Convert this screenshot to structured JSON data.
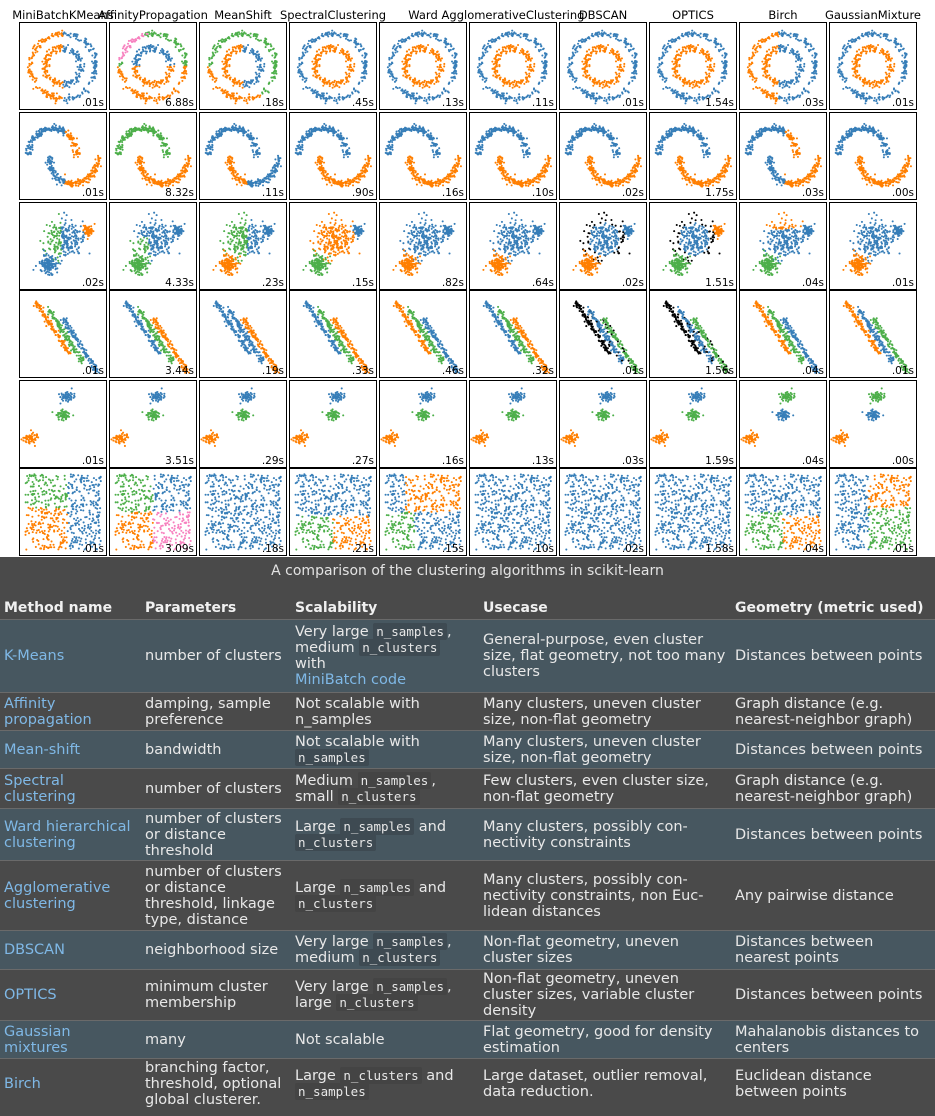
{
  "figure": {
    "algorithms": [
      "MiniBatchKMeans",
      "AffinityPropagation",
      "MeanShift",
      "SpectralClustering",
      "Ward",
      "AgglomerativeClustering",
      "DBSCAN",
      "OPTICS",
      "Birch",
      "GaussianMixture"
    ],
    "times": [
      [
        ".01s",
        "6.88s",
        ".18s",
        ".45s",
        ".13s",
        ".11s",
        ".01s",
        "1.54s",
        ".03s",
        ".01s"
      ],
      [
        ".01s",
        "8.32s",
        ".11s",
        ".90s",
        ".16s",
        ".10s",
        ".02s",
        "1.75s",
        ".03s",
        ".00s"
      ],
      [
        ".02s",
        "4.33s",
        ".23s",
        ".15s",
        ".82s",
        ".64s",
        ".02s",
        "1.51s",
        ".04s",
        ".01s"
      ],
      [
        ".01s",
        "3.44s",
        ".19s",
        ".33s",
        ".46s",
        ".32s",
        ".01s",
        "1.56s",
        ".04s",
        ".01s"
      ],
      [
        ".01s",
        "3.51s",
        ".29s",
        ".27s",
        ".16s",
        ".13s",
        ".03s",
        "1.59s",
        ".04s",
        ".00s"
      ],
      [
        ".01s",
        "3.09s",
        ".18s",
        ".21s",
        ".15s",
        ".10s",
        ".02s",
        "1.58s",
        ".04s",
        ".01s"
      ]
    ],
    "colors": {
      "blue": "#377eb8",
      "orange": "#ff7f00",
      "green": "#4daf4a",
      "pink": "#f781bf",
      "noise": "#000000"
    }
  },
  "caption": "A comparison of the clustering algorithms in scikit-learn",
  "table": {
    "headers": [
      "Method name",
      "Parameters",
      "Scalability",
      "Usecase",
      "Geometry (metric used)"
    ],
    "rows": [
      {
        "method": "K-Means",
        "params": "number of clusters",
        "scal": [
          {
            "t": "Very large "
          },
          {
            "c": "n_samples"
          },
          {
            "t": ","
          },
          {
            "br": 1
          },
          {
            "t": "medium "
          },
          {
            "c": "n_clusters"
          },
          {
            "br": 1
          },
          {
            "t": "with"
          },
          {
            "br": 1
          },
          {
            "l": "MiniBatch code"
          }
        ],
        "usecase": "General-purpose, even cluster size, flat geometry, not too many clusters",
        "geom": "Distances between points"
      },
      {
        "method": "Affinity propagation",
        "params": "damping, sample preference",
        "scal": [
          {
            "t": "Not scalable with"
          },
          {
            "br": 1
          },
          {
            "t": "n_samples"
          }
        ],
        "usecase": "Many clusters, uneven cluster size, non-flat geometry",
        "geom": "Graph distance (e.g. nearest-neighbor graph)"
      },
      {
        "method": "Mean-shift",
        "params": "bandwidth",
        "scal": [
          {
            "t": "Not scalable with"
          },
          {
            "br": 1
          },
          {
            "c": "n_samples"
          }
        ],
        "usecase": "Many clusters, uneven cluster size, non-flat geometry",
        "geom": "Distances between points"
      },
      {
        "method": "Spectral clustering",
        "params": "number of clusters",
        "scal": [
          {
            "t": "Medium "
          },
          {
            "c": "n_samples"
          },
          {
            "t": ","
          },
          {
            "br": 1
          },
          {
            "t": "small "
          },
          {
            "c": "n_clusters"
          }
        ],
        "usecase": "Few clusters, even cluster size, non-flat geometry",
        "geom": "Graph distance (e.g. nearest-neighbor graph)"
      },
      {
        "method": "Ward hierarchical clustering",
        "params": "number of clusters or distance threshold",
        "scal": [
          {
            "t": "Large "
          },
          {
            "c": "n_samples"
          },
          {
            "t": " and"
          },
          {
            "br": 1
          },
          {
            "c": "n_clusters"
          }
        ],
        "usecase": "Many clusters, possibly con- nectivity constraints",
        "geom": "Distances between points"
      },
      {
        "method": "Agglomerative clustering",
        "params": "number of clusters or distance threshold, linkage type, distance",
        "scal": [
          {
            "t": "Large "
          },
          {
            "c": "n_samples"
          },
          {
            "t": " and"
          },
          {
            "br": 1
          },
          {
            "c": "n_clusters"
          }
        ],
        "usecase": "Many clusters, possibly con- nectivity constraints, non Euc- lidean distances",
        "geom": "Any pairwise distance"
      },
      {
        "method": "DBSCAN",
        "params": "neighborhood size",
        "scal": [
          {
            "t": "Very large "
          },
          {
            "c": "n_samples"
          },
          {
            "t": ","
          },
          {
            "br": 1
          },
          {
            "t": "medium "
          },
          {
            "c": "n_clusters"
          }
        ],
        "usecase": "Non-flat geometry, uneven cluster sizes",
        "geom": "Distances between nearest points"
      },
      {
        "method": "OPTICS",
        "params": "minimum cluster membership",
        "scal": [
          {
            "t": "Very large "
          },
          {
            "c": "n_samples"
          },
          {
            "t": ","
          },
          {
            "br": 1
          },
          {
            "t": "large "
          },
          {
            "c": "n_clusters"
          }
        ],
        "usecase": "Non-flat geometry, uneven cluster sizes, variable cluster density",
        "geom": "Distances between points"
      },
      {
        "method": "Gaussian mixtures",
        "params": "many",
        "scal": [
          {
            "t": "Not scalable"
          }
        ],
        "usecase": "Flat geometry, good for density estimation",
        "geom": "Mahalanobis distances to centers"
      },
      {
        "method": "Birch",
        "params": "branching factor, threshold, optional global clusterer.",
        "scal": [
          {
            "t": "Large "
          },
          {
            "c": "n_clusters"
          },
          {
            "t": " and"
          },
          {
            "br": 1
          },
          {
            "c": "n_samples"
          }
        ],
        "usecase": "Large dataset, outlier removal, data reduction.",
        "geom": "Euclidean distance between points"
      }
    ]
  }
}
